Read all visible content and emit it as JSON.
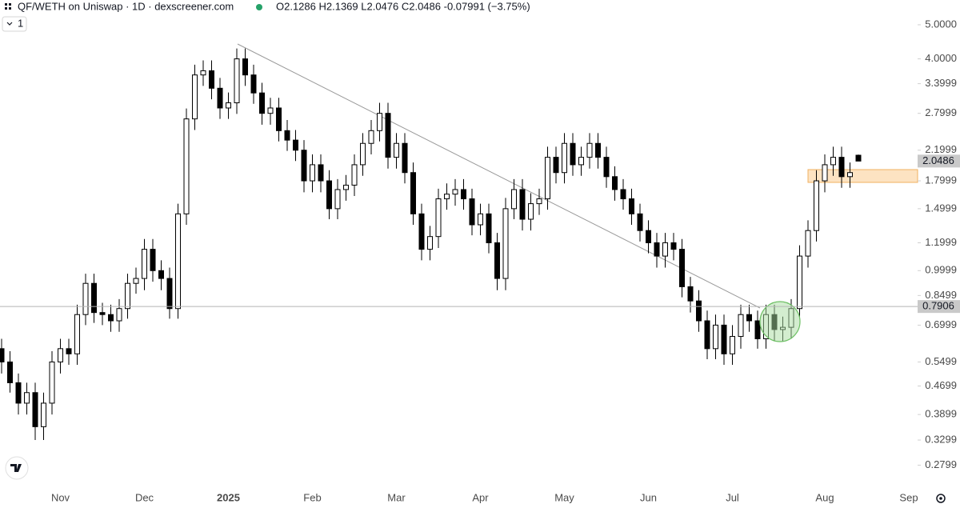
{
  "chart_data": {
    "type": "candlestick",
    "title": "QF/WETH on Uniswap · 1D · dexscreener.com",
    "ohlc_legend": "O2.1286 H2.1369 L2.0476 C2.0486 -0.07991 (−3.75%)",
    "interval": "1",
    "log_scale": true,
    "up_color": "#ffffff",
    "down_color": "#000000",
    "wick_color": "#000000",
    "ylim": [
      0.241,
      5.88
    ],
    "yticks": [
      {
        "value": 5,
        "label": "5.0000"
      },
      {
        "value": 4,
        "label": "4.0000"
      },
      3.3999,
      2.7999,
      2.1999,
      1.7999,
      1.4999,
      1.1999,
      0.9999,
      0.8499,
      0.6999,
      0.5499,
      0.4699,
      0.3899,
      0.3299,
      0.2799
    ],
    "price_line": 0.7906,
    "last_price": 2.0486,
    "categories": [
      null,
      null,
      null,
      null,
      null,
      null,
      null,
      "Nov",
      null,
      null,
      null,
      null,
      null,
      null,
      null,
      null,
      null,
      "Dec",
      null,
      null,
      null,
      null,
      null,
      null,
      null,
      null,
      null,
      "2025",
      null,
      null,
      null,
      null,
      null,
      null,
      null,
      null,
      null,
      "Feb",
      null,
      null,
      null,
      null,
      null,
      null,
      null,
      null,
      null,
      "Mar",
      null,
      null,
      null,
      null,
      null,
      null,
      null,
      null,
      null,
      "Apr",
      null,
      null,
      null,
      null,
      null,
      null,
      null,
      null,
      null,
      "May",
      null,
      null,
      null,
      null,
      null,
      null,
      null,
      null,
      null,
      "Jun",
      null,
      null,
      null,
      null,
      null,
      null,
      null,
      null,
      null,
      "Jul",
      null,
      null,
      null,
      null,
      null,
      null,
      null,
      null,
      null,
      null,
      "Aug",
      null,
      null,
      null,
      null,
      null,
      null,
      null,
      null,
      null,
      "Sep"
    ],
    "open": [
      0.6,
      0.55,
      0.48,
      0.42,
      0.45,
      0.36,
      0.42,
      0.55,
      0.6,
      0.58,
      0.75,
      0.92,
      0.76,
      0.75,
      0.72,
      0.78,
      0.92,
      0.95,
      1.15,
      1.0,
      0.95,
      0.78,
      1.45,
      2.7,
      3.6,
      3.7,
      3.3,
      2.9,
      3.0,
      4.0,
      3.6,
      3.2,
      2.8,
      2.9,
      2.5,
      2.35,
      2.2,
      1.8,
      2.0,
      1.8,
      1.5,
      1.7,
      1.75,
      2.0,
      2.3,
      2.5,
      2.8,
      2.1,
      2.3,
      1.9,
      1.45,
      1.15,
      1.25,
      1.6,
      1.65,
      1.7,
      1.6,
      1.35,
      1.45,
      1.2,
      0.95,
      1.5,
      1.7,
      1.4,
      1.55,
      1.6,
      2.1,
      1.9,
      2.3,
      2.0,
      2.1,
      2.3,
      2.1,
      1.85,
      1.7,
      1.6,
      1.45,
      1.3,
      1.2,
      1.1,
      1.2,
      1.15,
      0.9,
      0.82,
      0.72,
      0.6,
      0.7,
      0.58,
      0.65,
      0.75,
      0.72,
      0.64,
      0.75,
      0.68,
      0.69,
      0.78,
      1.1,
      1.3,
      1.8,
      2.0,
      2.1,
      1.85,
      2.1286,
      null,
      null,
      null,
      null,
      null,
      null
    ],
    "high": [
      0.64,
      0.59,
      0.51,
      0.48,
      0.48,
      0.45,
      0.59,
      0.64,
      0.64,
      0.8,
      0.98,
      0.98,
      0.81,
      0.8,
      0.83,
      0.98,
      1.02,
      1.23,
      1.23,
      1.07,
      1.02,
      1.55,
      2.89,
      3.85,
      3.96,
      3.96,
      3.53,
      3.21,
      4.28,
      4.28,
      3.85,
      3.42,
      3.1,
      3.1,
      2.68,
      2.51,
      2.35,
      2.14,
      2.14,
      1.93,
      1.82,
      1.87,
      2.14,
      2.46,
      2.68,
      3.0,
      3.0,
      2.46,
      2.46,
      2.03,
      1.55,
      1.34,
      1.71,
      1.77,
      1.82,
      1.82,
      1.71,
      1.55,
      1.55,
      1.28,
      1.61,
      1.82,
      1.82,
      1.66,
      1.71,
      2.25,
      2.25,
      2.46,
      2.46,
      2.25,
      2.46,
      2.46,
      2.25,
      1.98,
      1.82,
      1.71,
      1.55,
      1.39,
      1.28,
      1.28,
      1.28,
      1.23,
      0.96,
      0.88,
      0.77,
      0.75,
      0.75,
      0.7,
      0.8,
      0.8,
      0.77,
      0.8,
      0.8,
      0.74,
      0.83,
      1.18,
      1.39,
      1.93,
      2.14,
      2.25,
      2.25,
      2.03,
      2.1369,
      null,
      null,
      null,
      null,
      null,
      null
    ],
    "low": [
      0.51,
      0.45,
      0.39,
      0.39,
      0.33,
      0.33,
      0.39,
      0.51,
      0.54,
      0.54,
      0.7,
      0.71,
      0.7,
      0.67,
      0.67,
      0.73,
      0.86,
      0.88,
      0.93,
      0.88,
      0.73,
      0.73,
      1.35,
      2.51,
      3.35,
      3.07,
      2.7,
      2.7,
      2.79,
      3.35,
      2.98,
      2.6,
      2.6,
      2.33,
      2.19,
      2.05,
      1.67,
      1.67,
      1.67,
      1.4,
      1.4,
      1.58,
      1.63,
      1.86,
      2.14,
      2.33,
      1.95,
      1.95,
      1.77,
      1.35,
      1.07,
      1.07,
      1.16,
      1.49,
      1.53,
      1.49,
      1.26,
      1.26,
      1.12,
      0.88,
      0.88,
      1.4,
      1.3,
      1.3,
      1.44,
      1.49,
      1.77,
      1.77,
      1.86,
      1.86,
      1.95,
      1.95,
      1.72,
      1.58,
      1.49,
      1.35,
      1.21,
      1.12,
      1.02,
      1.02,
      1.07,
      0.84,
      0.76,
      0.67,
      0.56,
      0.56,
      0.54,
      0.54,
      0.6,
      0.67,
      0.6,
      0.6,
      0.63,
      0.63,
      0.64,
      0.73,
      1.02,
      1.21,
      1.67,
      1.86,
      1.72,
      1.72,
      2.0476,
      null,
      null,
      null,
      null,
      null,
      null
    ],
    "close": [
      0.55,
      0.48,
      0.42,
      0.45,
      0.36,
      0.42,
      0.55,
      0.6,
      0.58,
      0.75,
      0.92,
      0.76,
      0.75,
      0.72,
      0.78,
      0.92,
      0.95,
      1.15,
      1.0,
      0.95,
      0.78,
      1.45,
      2.7,
      3.6,
      3.7,
      3.3,
      2.9,
      3.0,
      4.0,
      3.6,
      3.2,
      2.8,
      2.9,
      2.5,
      2.35,
      2.2,
      1.8,
      2.0,
      1.8,
      1.5,
      1.7,
      1.75,
      2.0,
      2.3,
      2.5,
      2.8,
      2.1,
      2.3,
      1.9,
      1.45,
      1.15,
      1.25,
      1.6,
      1.65,
      1.7,
      1.6,
      1.35,
      1.45,
      1.2,
      0.95,
      1.5,
      1.7,
      1.4,
      1.55,
      1.6,
      2.1,
      1.9,
      2.3,
      2.0,
      2.1,
      2.3,
      2.1,
      1.85,
      1.7,
      1.6,
      1.45,
      1.3,
      1.2,
      1.1,
      1.2,
      1.15,
      0.9,
      0.82,
      0.72,
      0.6,
      0.7,
      0.58,
      0.65,
      0.75,
      0.72,
      0.64,
      0.75,
      0.68,
      0.69,
      0.78,
      1.1,
      1.3,
      1.8,
      2.0,
      2.1,
      1.85,
      1.9,
      2.0486,
      null,
      null,
      null,
      null,
      null,
      null
    ]
  }
}
